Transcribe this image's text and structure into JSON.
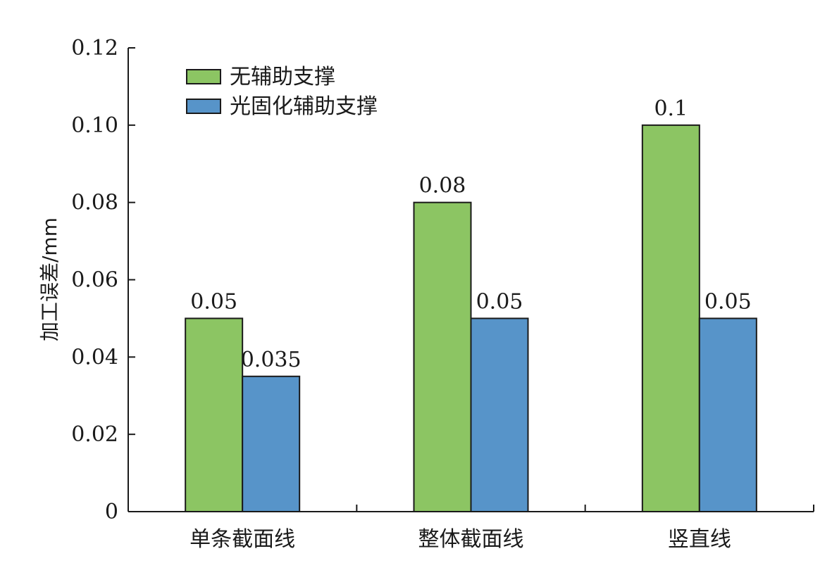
{
  "chart_data": {
    "type": "bar",
    "title": "",
    "xlabel": "",
    "ylabel": "加工误差/mm",
    "ylim": [
      0,
      0.12
    ],
    "yticks": [
      "0",
      "0.02",
      "0.04",
      "0.06",
      "0.08",
      "0.10",
      "0.12"
    ],
    "categories": [
      "单条截面线",
      "整体截面线",
      "竖直线"
    ],
    "series": [
      {
        "name": "无辅助支撑",
        "color": "#8cc563",
        "values": [
          0.05,
          0.08,
          0.1
        ],
        "labels": [
          "0.05",
          "0.08",
          "0.1"
        ]
      },
      {
        "name": "光固化辅助支撑",
        "color": "#5794c9",
        "values": [
          0.035,
          0.05,
          0.05
        ],
        "labels": [
          "0.035",
          "0.05",
          "0.05"
        ]
      }
    ],
    "legend_position": "top-left",
    "grid": false
  }
}
